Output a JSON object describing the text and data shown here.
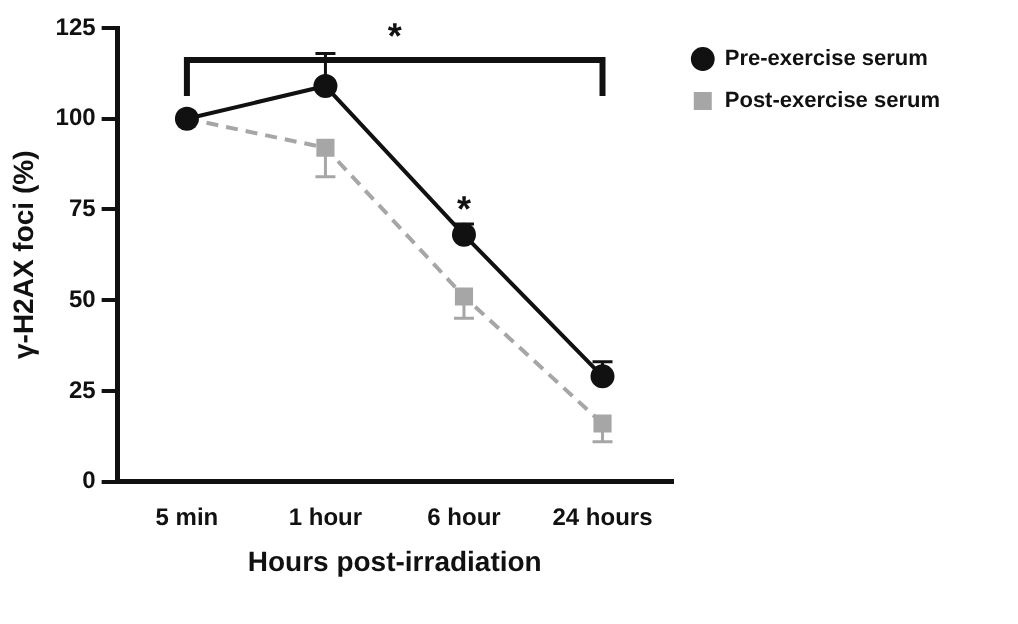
{
  "chart_data": {
    "type": "line",
    "xlabel": "Hours post-irradiation",
    "ylabel": "γ-H2AX foci (%)",
    "categories": [
      "5 min",
      "1 hour",
      "6 hour",
      "24 hours"
    ],
    "series": [
      {
        "name": "Pre-exercise serum",
        "color": "#111111",
        "values": [
          100,
          109,
          68,
          29
        ],
        "errors": [
          null,
          [
            109,
            118
          ],
          [
            68,
            71
          ],
          [
            29,
            33
          ]
        ],
        "marker": "circle",
        "line_style": "solid"
      },
      {
        "name": "Post-exercise serum",
        "color": "#a6a6a6",
        "values": [
          100,
          92,
          51,
          16
        ],
        "errors": [
          null,
          [
            84,
            92
          ],
          [
            45,
            51
          ],
          [
            11,
            16
          ]
        ],
        "marker": "square",
        "line_style": "dashed"
      }
    ],
    "ylim": [
      0,
      125
    ],
    "yticks": [
      0,
      25,
      50,
      75,
      100,
      125
    ],
    "grid": false,
    "legend": "right",
    "annotations": [
      "*",
      {
        "text": "*",
        "x": "6 hour",
        "y": 73
      }
    ]
  }
}
